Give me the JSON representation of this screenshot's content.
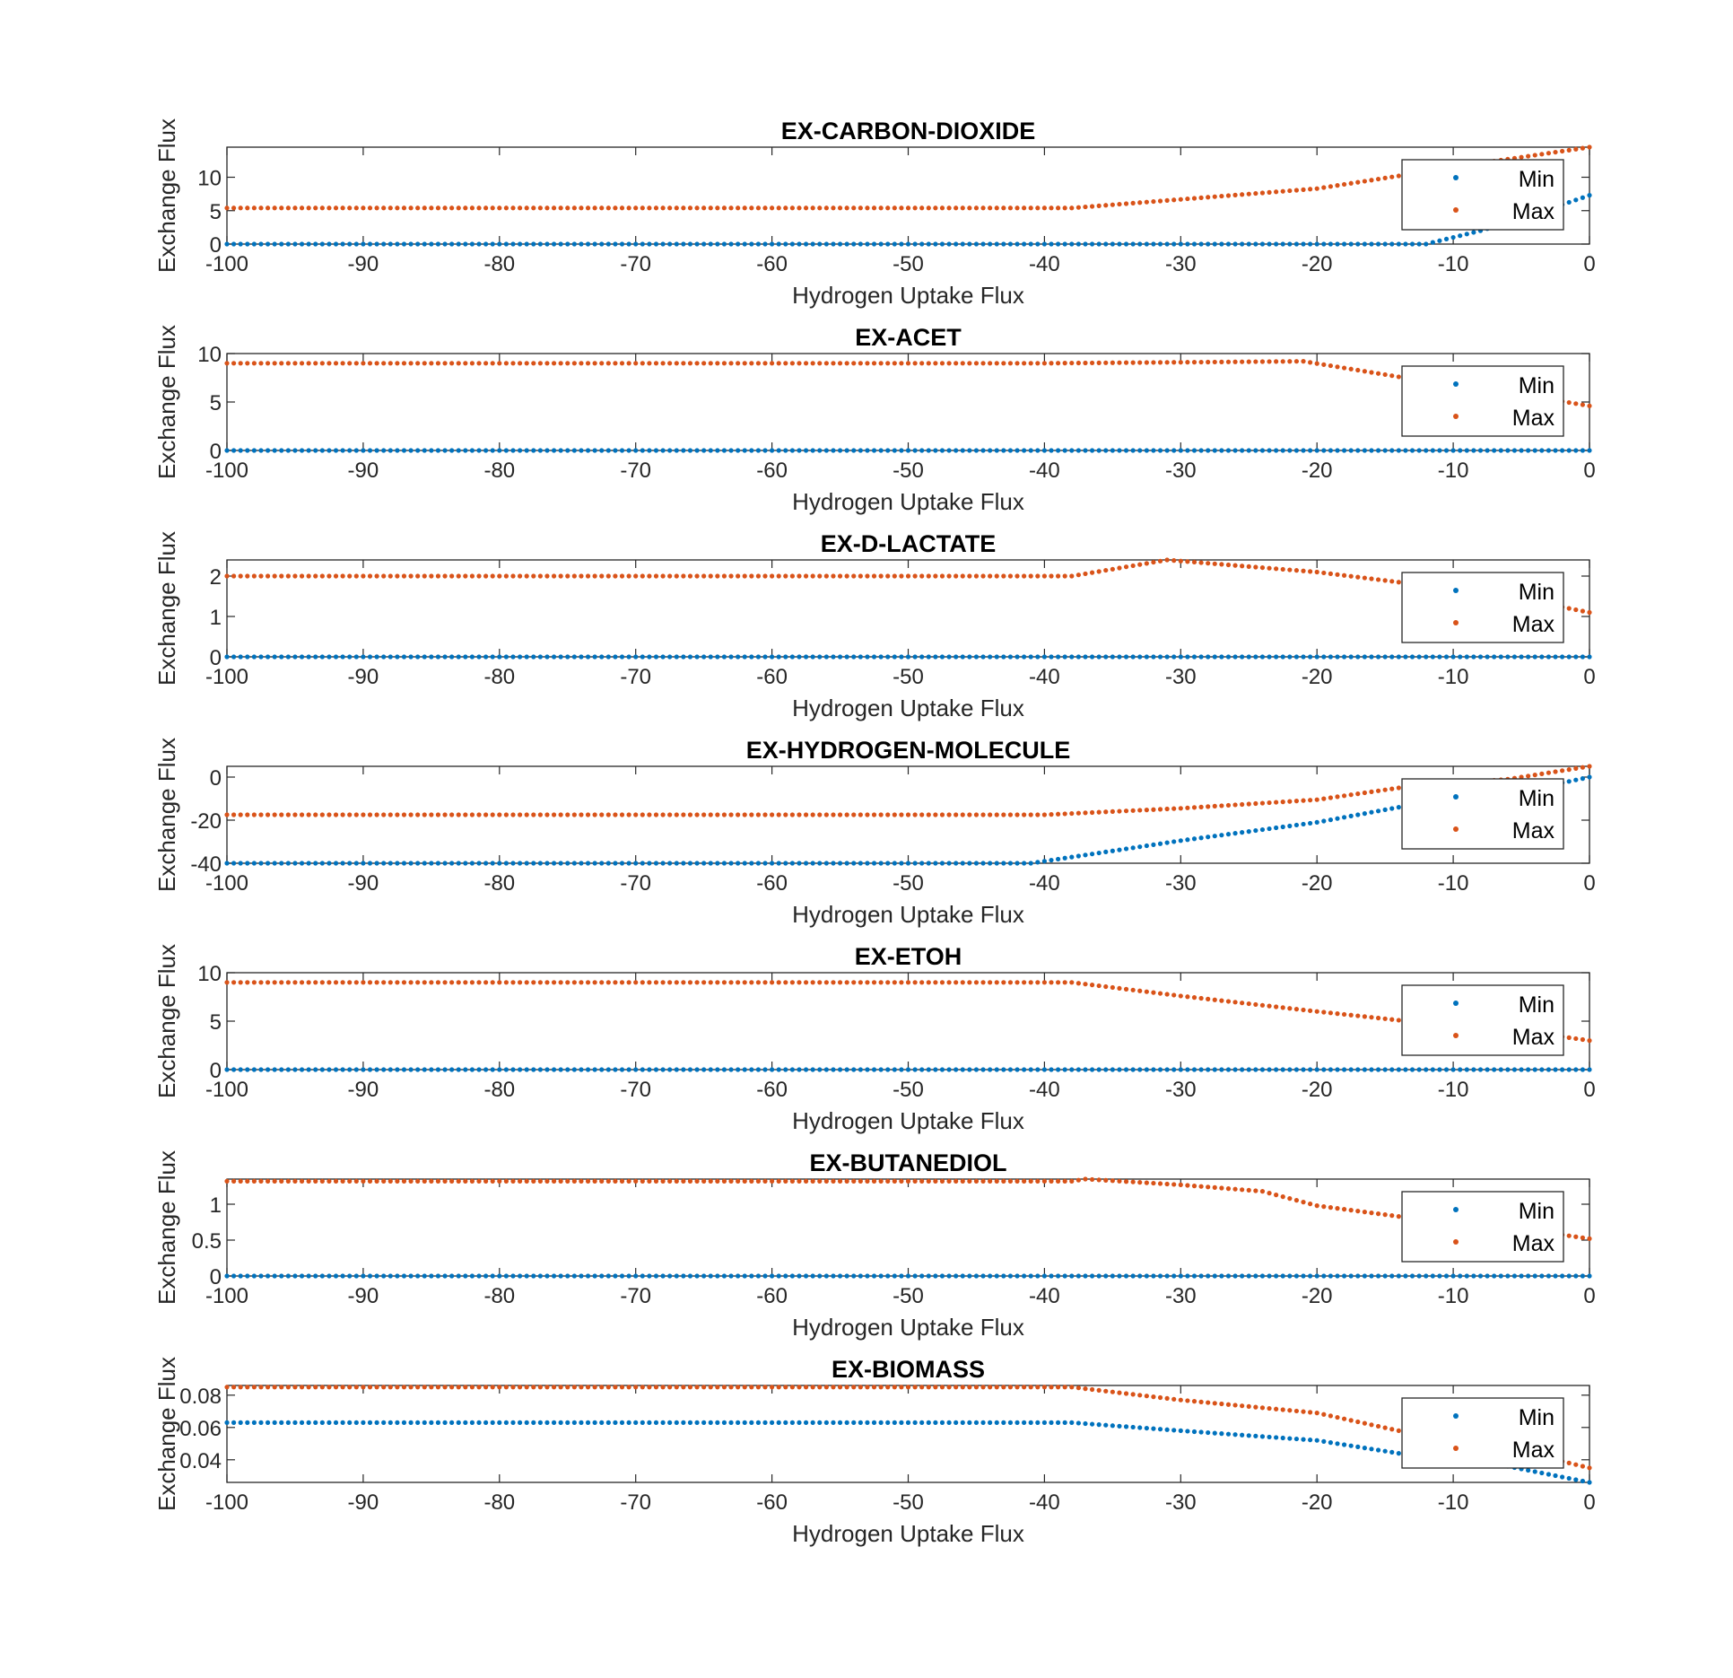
{
  "chart_data": [
    {
      "type": "scatter",
      "title": "EX-CARBON-DIOXIDE",
      "xlabel": "Hydrogen Uptake Flux",
      "ylabel": "Exchange Flux",
      "xlim": [
        -100,
        0
      ],
      "ylim": [
        0,
        14.5
      ],
      "xticks": [
        "-100",
        "-90",
        "-80",
        "-70",
        "-60",
        "-50",
        "-40",
        "-30",
        "-20",
        "-10",
        "0"
      ],
      "yticks": [
        {
          "v": 0,
          "label": "0"
        },
        {
          "v": 5,
          "label": "5"
        },
        {
          "v": 10,
          "label": "10"
        }
      ],
      "legend": {
        "position": "top-right",
        "entries": [
          "Min",
          "Max"
        ]
      },
      "series": [
        {
          "name": "Min",
          "color": "#0072BD",
          "points": [
            [
              -100,
              0
            ],
            [
              -12,
              0
            ],
            [
              -8,
              2
            ],
            [
              -4,
              4.5
            ],
            [
              0,
              7.3
            ]
          ]
        },
        {
          "name": "Max",
          "color": "#D95319",
          "points": [
            [
              -100,
              5.4
            ],
            [
              -38,
              5.4
            ],
            [
              -20,
              8.3
            ],
            [
              -14,
              10.2
            ],
            [
              -10,
              11.5
            ],
            [
              0,
              14.5
            ]
          ]
        }
      ]
    },
    {
      "type": "scatter",
      "title": "EX-ACET",
      "xlabel": "Hydrogen Uptake Flux",
      "ylabel": "Exchange Flux",
      "xlim": [
        -100,
        0
      ],
      "ylim": [
        0,
        10
      ],
      "xticks": [
        "-100",
        "-90",
        "-80",
        "-70",
        "-60",
        "-50",
        "-40",
        "-30",
        "-20",
        "-10",
        "0"
      ],
      "yticks": [
        {
          "v": 0,
          "label": "0"
        },
        {
          "v": 5,
          "label": "5"
        },
        {
          "v": 10,
          "label": "10"
        }
      ],
      "legend": {
        "position": "top-right",
        "entries": [
          "Min",
          "Max"
        ]
      },
      "series": [
        {
          "name": "Min",
          "color": "#0072BD",
          "points": [
            [
              -100,
              0
            ],
            [
              0,
              0
            ]
          ]
        },
        {
          "name": "Max",
          "color": "#D95319",
          "points": [
            [
              -100,
              9.0
            ],
            [
              -40,
              9.0
            ],
            [
              -30,
              9.1
            ],
            [
              -21,
              9.2
            ],
            [
              -14,
              7.6
            ],
            [
              -6,
              6.0
            ],
            [
              0,
              4.6
            ]
          ]
        }
      ]
    },
    {
      "type": "scatter",
      "title": "EX-D-LACTATE",
      "xlabel": "Hydrogen Uptake Flux",
      "ylabel": "Exchange Flux",
      "xlim": [
        -100,
        0
      ],
      "ylim": [
        0,
        2.4
      ],
      "xticks": [
        "-100",
        "-90",
        "-80",
        "-70",
        "-60",
        "-50",
        "-40",
        "-30",
        "-20",
        "-10",
        "0"
      ],
      "yticks": [
        {
          "v": 0,
          "label": "0"
        },
        {
          "v": 1,
          "label": "1"
        },
        {
          "v": 2,
          "label": "2"
        }
      ],
      "legend": {
        "position": "top-right",
        "entries": [
          "Min",
          "Max"
        ]
      },
      "series": [
        {
          "name": "Min",
          "color": "#0072BD",
          "points": [
            [
              -100,
              0
            ],
            [
              0,
              0
            ]
          ]
        },
        {
          "name": "Max",
          "color": "#D95319",
          "points": [
            [
              -100,
              2.0
            ],
            [
              -38,
              2.0
            ],
            [
              -31,
              2.4
            ],
            [
              -20,
              2.1
            ],
            [
              -14,
              1.85
            ],
            [
              -6,
              1.5
            ],
            [
              0,
              1.1
            ]
          ]
        }
      ]
    },
    {
      "type": "scatter",
      "title": "EX-HYDROGEN-MOLECULE",
      "xlabel": "Hydrogen Uptake Flux",
      "ylabel": "Exchange Flux",
      "xlim": [
        -100,
        0
      ],
      "ylim": [
        -40,
        5
      ],
      "xticks": [
        "-100",
        "-90",
        "-80",
        "-70",
        "-60",
        "-50",
        "-40",
        "-30",
        "-20",
        "-10",
        "0"
      ],
      "yticks": [
        {
          "v": -40,
          "label": "-40"
        },
        {
          "v": -20,
          "label": "-20"
        },
        {
          "v": 0,
          "label": "0"
        }
      ],
      "legend": {
        "position": "top-right",
        "entries": [
          "Min",
          "Max"
        ]
      },
      "series": [
        {
          "name": "Min",
          "color": "#0072BD",
          "points": [
            [
              -100,
              -40
            ],
            [
              -41,
              -40
            ],
            [
              -30,
              -29.5
            ],
            [
              -20,
              -21
            ],
            [
              -14,
              -14
            ],
            [
              -6,
              -8
            ],
            [
              0,
              0
            ]
          ]
        },
        {
          "name": "Max",
          "color": "#D95319",
          "points": [
            [
              -100,
              -17.5
            ],
            [
              -40,
              -17.5
            ],
            [
              -30,
              -14.5
            ],
            [
              -20,
              -10.5
            ],
            [
              -14,
              -5
            ],
            [
              -6,
              -1
            ],
            [
              0,
              5
            ]
          ]
        }
      ]
    },
    {
      "type": "scatter",
      "title": "EX-ETOH",
      "xlabel": "Hydrogen Uptake Flux",
      "ylabel": "Exchange Flux",
      "xlim": [
        -100,
        0
      ],
      "ylim": [
        0,
        10
      ],
      "xticks": [
        "-100",
        "-90",
        "-80",
        "-70",
        "-60",
        "-50",
        "-40",
        "-30",
        "-20",
        "-10",
        "0"
      ],
      "yticks": [
        {
          "v": 0,
          "label": "0"
        },
        {
          "v": 5,
          "label": "5"
        },
        {
          "v": 10,
          "label": "10"
        }
      ],
      "legend": {
        "position": "top-right",
        "entries": [
          "Min",
          "Max"
        ]
      },
      "series": [
        {
          "name": "Min",
          "color": "#0072BD",
          "points": [
            [
              -100,
              0
            ],
            [
              0,
              0
            ]
          ]
        },
        {
          "name": "Max",
          "color": "#D95319",
          "points": [
            [
              -100,
              9.0
            ],
            [
              -38,
              9.0
            ],
            [
              -30,
              7.6
            ],
            [
              -20,
              6.0
            ],
            [
              -14,
              5.1
            ],
            [
              -6,
              4.2
            ],
            [
              0,
              3.0
            ]
          ]
        }
      ]
    },
    {
      "type": "scatter",
      "title": "EX-BUTANEDIOL",
      "xlabel": "Hydrogen Uptake Flux",
      "ylabel": "Exchange Flux",
      "xlim": [
        -100,
        0
      ],
      "ylim": [
        0,
        1.35
      ],
      "xticks": [
        "-100",
        "-90",
        "-80",
        "-70",
        "-60",
        "-50",
        "-40",
        "-30",
        "-20",
        "-10",
        "0"
      ],
      "yticks": [
        {
          "v": 0,
          "label": "0"
        },
        {
          "v": 0.5,
          "label": "0.5"
        },
        {
          "v": 1,
          "label": "1"
        }
      ],
      "legend": {
        "position": "top-right",
        "entries": [
          "Min",
          "Max"
        ]
      },
      "series": [
        {
          "name": "Min",
          "color": "#0072BD",
          "points": [
            [
              -100,
              0
            ],
            [
              0,
              0
            ]
          ]
        },
        {
          "name": "Max",
          "color": "#D95319",
          "points": [
            [
              -100,
              1.32
            ],
            [
              -38,
              1.32
            ],
            [
              -37,
              1.35
            ],
            [
              -30,
              1.27
            ],
            [
              -24,
              1.18
            ],
            [
              -20,
              0.98
            ],
            [
              -14,
              0.83
            ],
            [
              -6,
              0.68
            ],
            [
              0,
              0.52
            ]
          ]
        }
      ]
    },
    {
      "type": "scatter",
      "title": "EX-BIOMASS",
      "xlabel": "Hydrogen Uptake Flux",
      "ylabel": "Exchange Flux",
      "xlim": [
        -100,
        0
      ],
      "ylim": [
        0.026,
        0.086
      ],
      "xticks": [
        "-100",
        "-90",
        "-80",
        "-70",
        "-60",
        "-50",
        "-40",
        "-30",
        "-20",
        "-10",
        "0"
      ],
      "yticks": [
        {
          "v": 0.04,
          "label": "0.04"
        },
        {
          "v": 0.06,
          "label": "0.06"
        },
        {
          "v": 0.08,
          "label": "0.08"
        }
      ],
      "legend": {
        "position": "top-right",
        "entries": [
          "Min",
          "Max"
        ]
      },
      "series": [
        {
          "name": "Min",
          "color": "#0072BD",
          "points": [
            [
              -100,
              0.063
            ],
            [
              -38,
              0.063
            ],
            [
              -30,
              0.058
            ],
            [
              -20,
              0.052
            ],
            [
              -14,
              0.044
            ],
            [
              -6,
              0.036
            ],
            [
              0,
              0.026
            ]
          ]
        },
        {
          "name": "Max",
          "color": "#D95319",
          "points": [
            [
              -100,
              0.085
            ],
            [
              -38,
              0.085
            ],
            [
              -30,
              0.077
            ],
            [
              -20,
              0.069
            ],
            [
              -14,
              0.058
            ],
            [
              -6,
              0.047
            ],
            [
              0,
              0.035
            ]
          ]
        }
      ]
    }
  ]
}
